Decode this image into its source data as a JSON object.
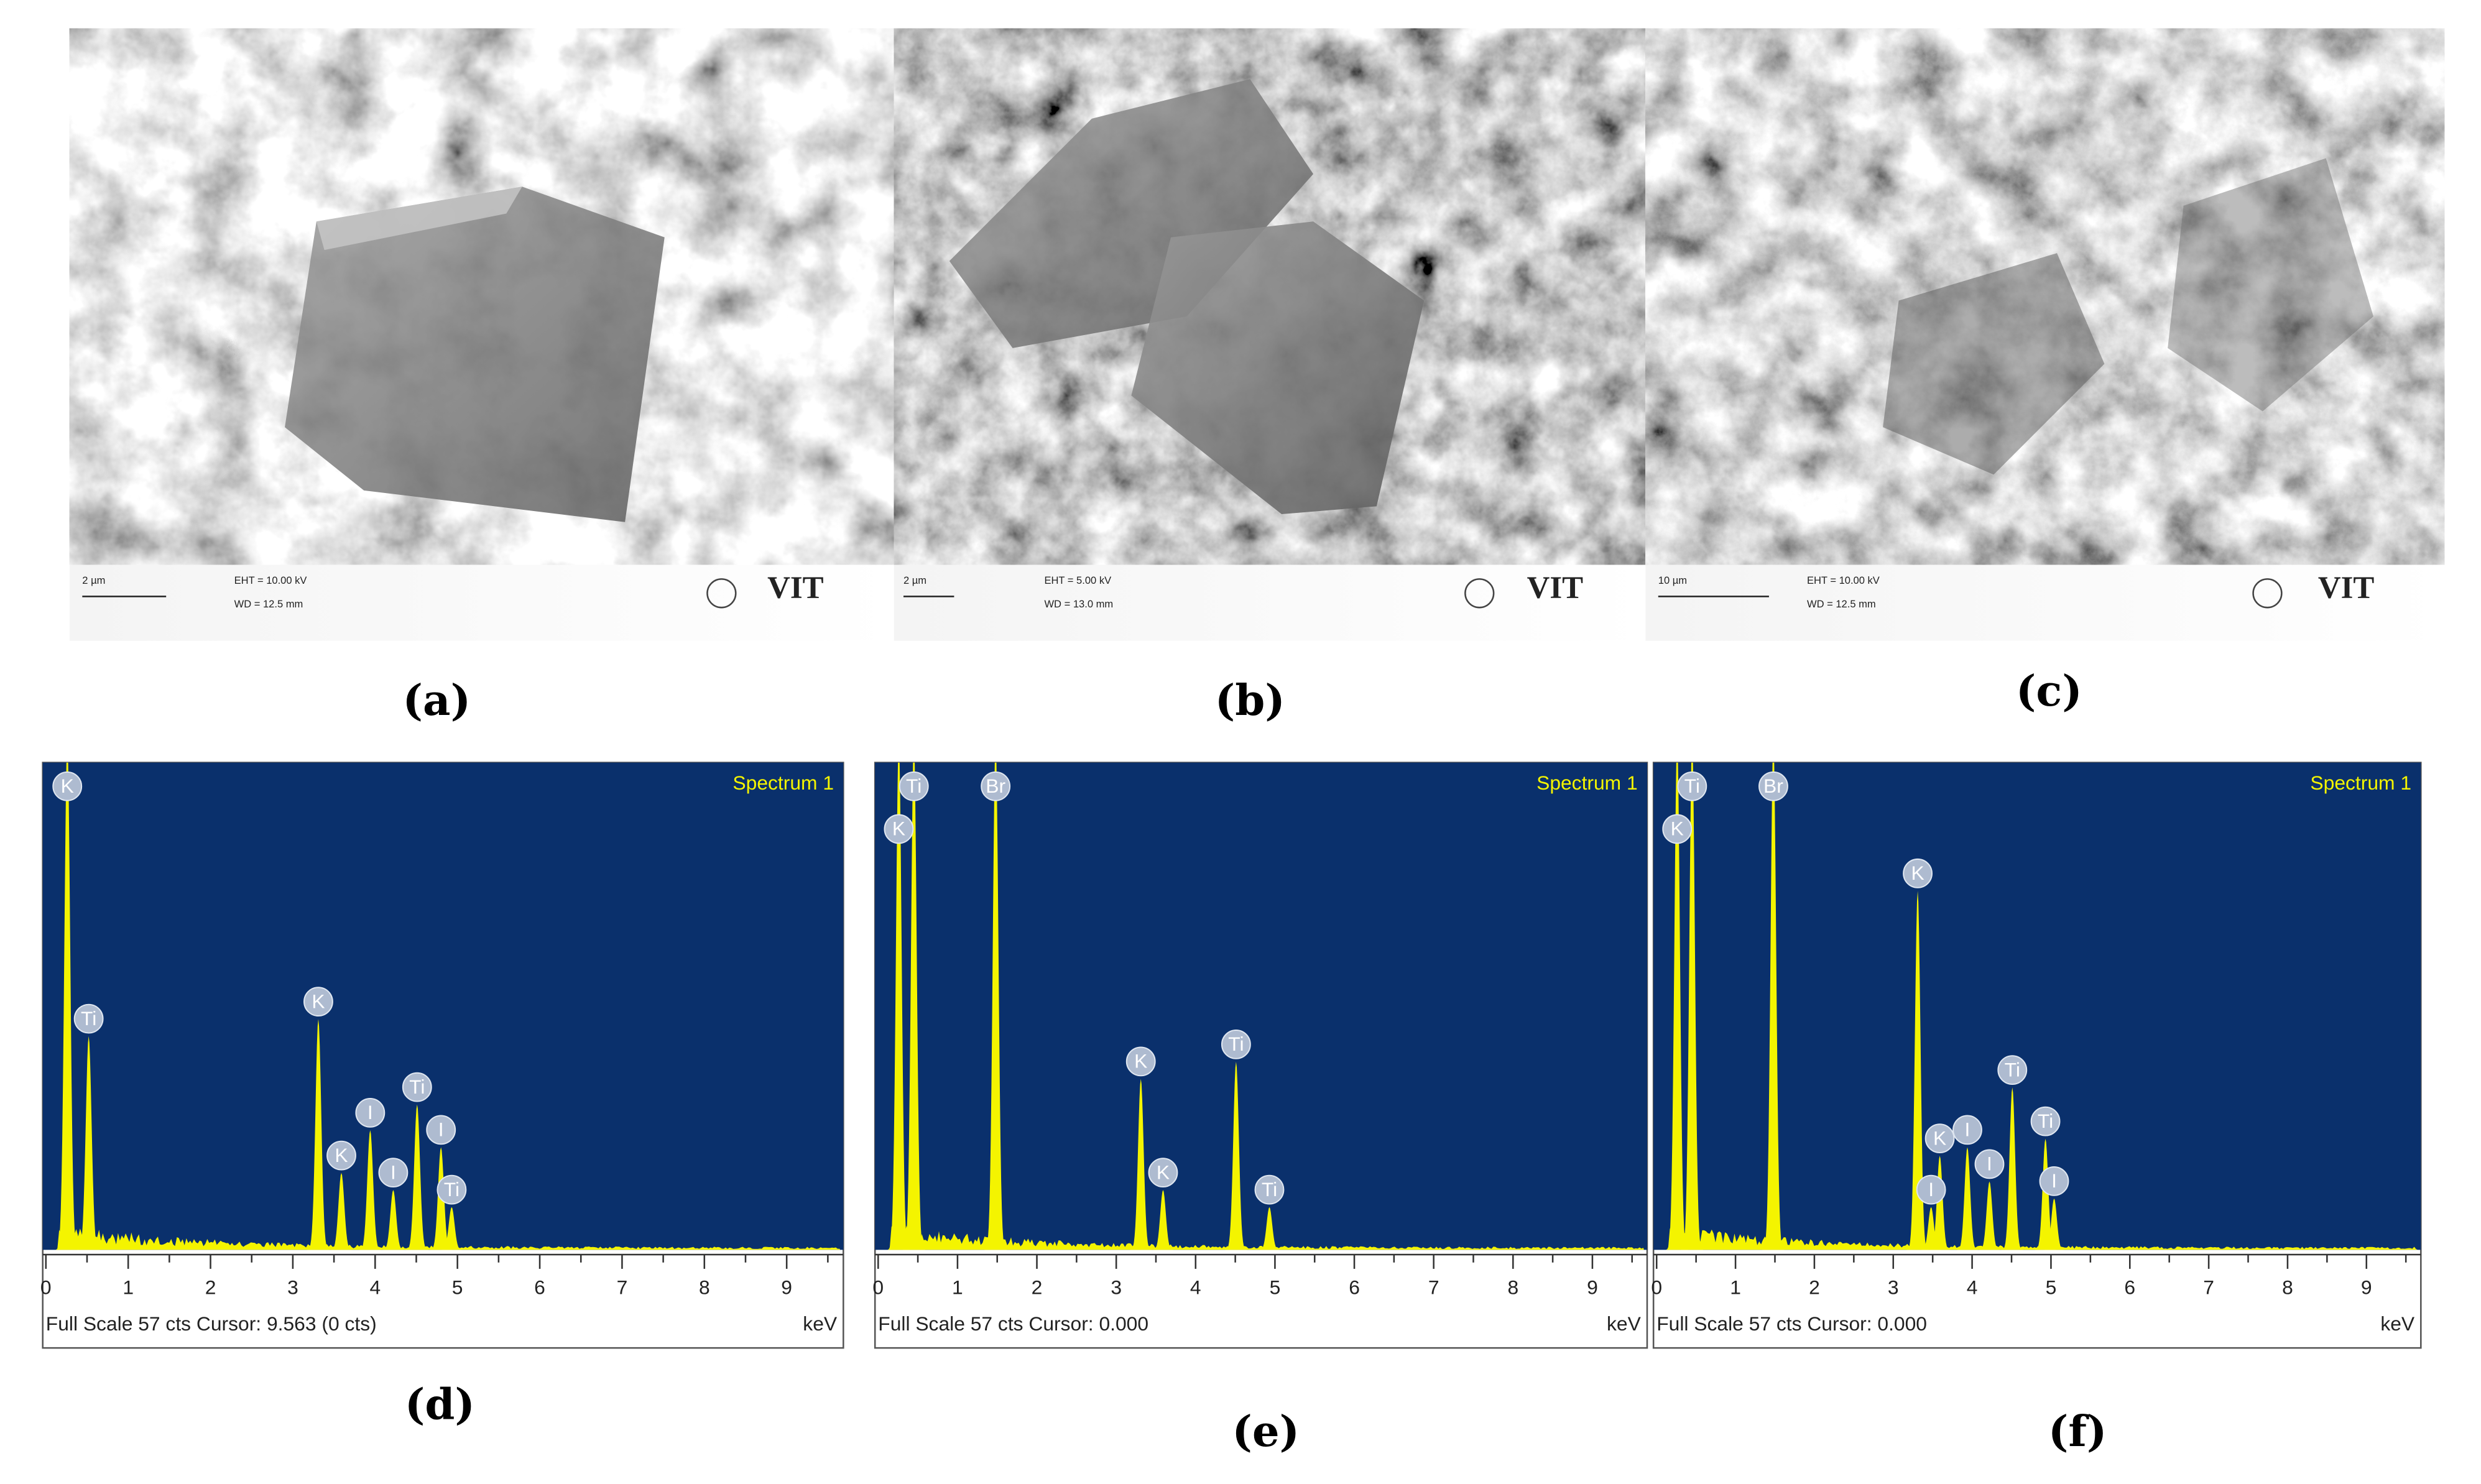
{
  "sem_images": [
    {
      "label": "(a)",
      "scale_bar": "2 µm",
      "eht": "EHT = 10.00 kV",
      "wd": "WD = 12.5 mm",
      "logo": "VIT"
    },
    {
      "label": "(b)",
      "scale_bar": "2 µm",
      "eht": "EHT =  5.00 kV",
      "wd": "WD = 13.0 mm",
      "logo": "VIT"
    },
    {
      "label": "(c)",
      "scale_bar": "10 µm",
      "eht": "EHT = 10.00 kV",
      "wd": "WD = 12.5 mm",
      "logo": "VIT"
    }
  ],
  "chart_data": [
    {
      "type": "spectrum",
      "title": "Spectrum 1",
      "label": "(d)",
      "x_label": "keV",
      "footer": "Full Scale 57 cts Cursor: 9.563  (0 cts)",
      "xlim": [
        0,
        9.65
      ],
      "ylim": [
        0,
        57
      ],
      "xticks": [
        0,
        1,
        2,
        3,
        4,
        5,
        6,
        7,
        8,
        9
      ],
      "color": "#f4f400",
      "background": "#0a306c",
      "peaks": [
        {
          "element": "K",
          "kev": 0.26,
          "cts": 60
        },
        {
          "element": "Ti",
          "kev": 0.52,
          "cts": 25
        },
        {
          "element": "K",
          "kev": 3.31,
          "cts": 27
        },
        {
          "element": "K",
          "kev": 3.59,
          "cts": 9
        },
        {
          "element": "I",
          "kev": 3.94,
          "cts": 14
        },
        {
          "element": "I",
          "kev": 4.22,
          "cts": 7
        },
        {
          "element": "Ti",
          "kev": 4.51,
          "cts": 17
        },
        {
          "element": "I",
          "kev": 4.8,
          "cts": 12
        },
        {
          "element": "Ti",
          "kev": 4.93,
          "cts": 5
        }
      ]
    },
    {
      "type": "spectrum",
      "title": "Spectrum 1",
      "label": "(e)",
      "x_label": "keV",
      "footer": "Full Scale 57 cts Cursor: 0.000",
      "xlim": [
        0,
        9.65
      ],
      "ylim": [
        0,
        57
      ],
      "xticks": [
        0,
        1,
        2,
        3,
        4,
        5,
        6,
        7,
        8,
        9
      ],
      "color": "#f4f400",
      "background": "#0a306c",
      "peaks": [
        {
          "element": "K",
          "kev": 0.26,
          "cts": 60
        },
        {
          "element": "Ti",
          "kev": 0.45,
          "cts": 60
        },
        {
          "element": "Br",
          "kev": 1.48,
          "cts": 60
        },
        {
          "element": "K",
          "kev": 3.31,
          "cts": 20
        },
        {
          "element": "K",
          "kev": 3.59,
          "cts": 7
        },
        {
          "element": "Ti",
          "kev": 4.51,
          "cts": 22
        },
        {
          "element": "Ti",
          "kev": 4.93,
          "cts": 5
        }
      ]
    },
    {
      "type": "spectrum",
      "title": "Spectrum 1",
      "label": "(f)",
      "x_label": "keV",
      "footer": "Full Scale 57 cts Cursor: 0.000",
      "xlim": [
        0,
        9.65
      ],
      "ylim": [
        0,
        57
      ],
      "xticks": [
        0,
        1,
        2,
        3,
        4,
        5,
        6,
        7,
        8,
        9
      ],
      "color": "#f4f400",
      "background": "#0a306c",
      "peaks": [
        {
          "element": "K",
          "kev": 0.26,
          "cts": 60
        },
        {
          "element": "Ti",
          "kev": 0.45,
          "cts": 60
        },
        {
          "element": "Br",
          "kev": 1.48,
          "cts": 60
        },
        {
          "element": "K",
          "kev": 3.31,
          "cts": 42
        },
        {
          "element": "I",
          "kev": 3.48,
          "cts": 5
        },
        {
          "element": "K",
          "kev": 3.59,
          "cts": 11
        },
        {
          "element": "I",
          "kev": 3.94,
          "cts": 12
        },
        {
          "element": "I",
          "kev": 4.22,
          "cts": 8
        },
        {
          "element": "Ti",
          "kev": 4.51,
          "cts": 19
        },
        {
          "element": "Ti",
          "kev": 4.93,
          "cts": 13
        },
        {
          "element": "I",
          "kev": 5.04,
          "cts": 6
        }
      ]
    }
  ]
}
